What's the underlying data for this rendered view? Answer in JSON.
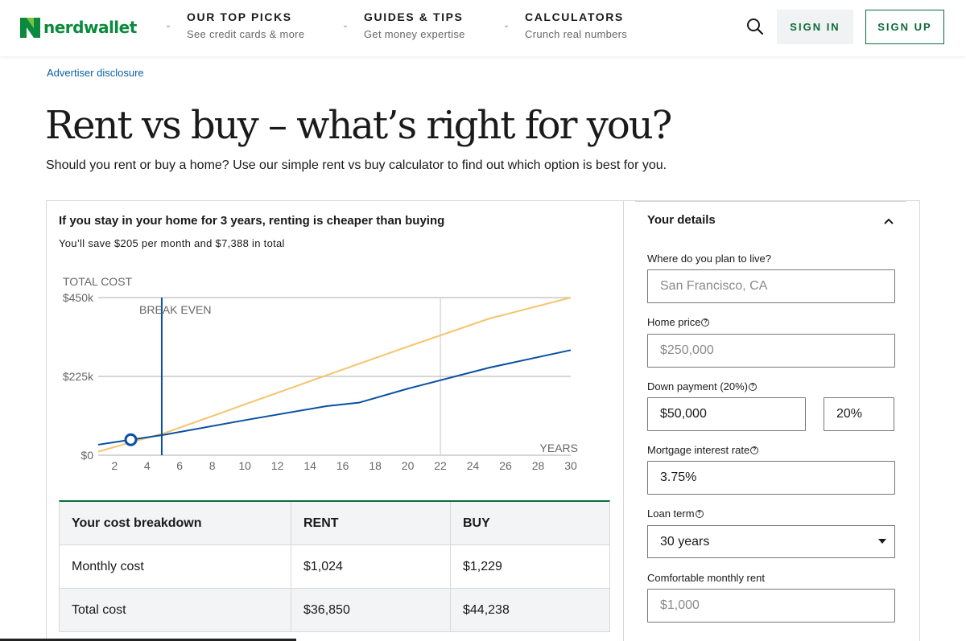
{
  "header": {
    "logo_text": "nerdwallet",
    "nav": [
      {
        "title": "OUR TOP PICKS",
        "subtitle": "See credit cards & more"
      },
      {
        "title": "GUIDES & TIPS",
        "subtitle": "Get money expertise"
      },
      {
        "title": "CALCULATORS",
        "subtitle": "Crunch real numbers"
      }
    ],
    "sign_in": "SIGN IN",
    "sign_up": "SIGN UP"
  },
  "disclosure": "Advertiser disclosure",
  "page": {
    "title": "Rent vs buy – what’s right for you?",
    "subtitle": "Should you rent or buy a home? Use our simple rent vs buy calculator to find out which option is best for you."
  },
  "result": {
    "headline": "If you stay in your home for 3 years, renting is cheaper than buying",
    "summary": "You’ll save $205 per month and $7,388 in total"
  },
  "chart_data": {
    "type": "line",
    "ylabel": "TOTAL COST",
    "xlabel": "YEARS",
    "y_ticks": [
      "$0",
      "$225k",
      "$450k"
    ],
    "x_ticks": [
      2,
      4,
      6,
      8,
      10,
      12,
      14,
      16,
      18,
      20,
      22,
      24,
      26,
      28,
      30
    ],
    "xlim": [
      1,
      30
    ],
    "ylim": [
      0,
      450000
    ],
    "break_even_label": "BREAK EVEN",
    "break_even_year": 4.9,
    "marker_year": 3,
    "series": [
      {
        "color": "#f5c46b",
        "x": [
          1,
          3,
          5,
          10,
          15,
          20,
          25,
          30
        ],
        "y": [
          10000,
          36850,
          62000,
          145000,
          228000,
          310000,
          390000,
          450000
        ]
      },
      {
        "color": "#0a4fa3",
        "x": [
          1,
          3,
          5,
          10,
          15,
          17,
          20,
          25,
          30
        ],
        "y": [
          30000,
          44238,
          58000,
          100000,
          140000,
          150000,
          190000,
          250000,
          300000
        ]
      }
    ]
  },
  "breakdown": {
    "headers": [
      "Your cost breakdown",
      "RENT",
      "BUY"
    ],
    "rows": [
      [
        "Monthly cost",
        "$1,024",
        "$1,229"
      ],
      [
        "Total cost",
        "$36,850",
        "$44,238"
      ]
    ]
  },
  "details": {
    "title": "Your details",
    "location_label": "Where do you plan to live?",
    "location_placeholder": "San Francisco, CA",
    "home_price_label": "Home price",
    "home_price_placeholder": "$250,000",
    "down_payment_label": "Down payment (20%)",
    "down_payment_value": "$50,000",
    "down_payment_percent": "20%",
    "interest_label": "Mortgage interest rate",
    "interest_value": "3.75%",
    "loan_term_label": "Loan term",
    "loan_term_value": "30 years",
    "rent_label": "Comfortable monthly rent",
    "rent_placeholder": "$1,000"
  },
  "colors": {
    "brand": "#0b6b3a",
    "link": "#0a5fa8",
    "rent_line": "#f5c46b",
    "buy_line": "#0a4fa3"
  }
}
